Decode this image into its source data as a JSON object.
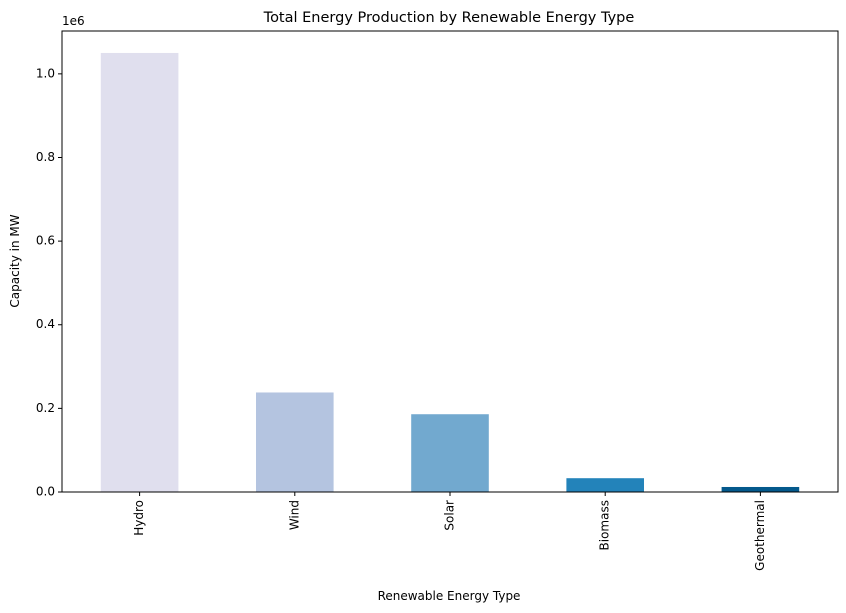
{
  "chart_data": {
    "type": "bar",
    "title": "Total Energy Production by Renewable Energy Type",
    "xlabel": "Renewable Energy Type",
    "ylabel": "Capacity in MW",
    "y_multiplier_label": "1e6",
    "categories": [
      "Hydro",
      "Wind",
      "Solar",
      "Biomass",
      "Geothermal"
    ],
    "values": [
      1050000,
      238000,
      186000,
      33000,
      12000
    ],
    "colors": [
      "#e0dfee",
      "#b4c4e0",
      "#72a9cf",
      "#2383ba",
      "#04598c"
    ],
    "ylim": [
      0,
      1102500
    ],
    "yticks": [
      0,
      200000,
      400000,
      600000,
      800000,
      1000000
    ],
    "ytick_labels": [
      "0.0",
      "0.2",
      "0.4",
      "0.6",
      "0.8",
      "1.0"
    ],
    "grid": false,
    "legend": "none"
  }
}
